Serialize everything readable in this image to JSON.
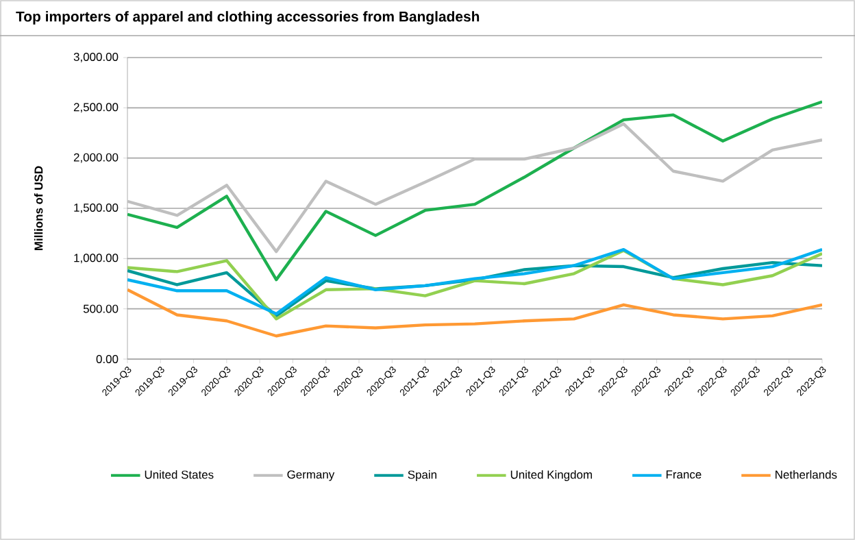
{
  "chart_data": {
    "type": "line",
    "title": "Top importers of apparel and clothing accessories from Bangladesh",
    "ylabel": "Millions of USD",
    "categories": [
      "2019-Q3",
      null,
      "2019-Q3",
      null,
      "2019-Q3",
      null,
      "2020-Q3",
      null,
      "2020-Q3",
      null,
      "2020-Q3",
      null,
      "2020-Q3",
      null,
      "2020-Q3",
      null,
      "2020-Q3",
      null,
      "2021-Q3",
      null,
      "2021-Q3",
      null,
      "2021-Q3",
      null,
      "2021-Q3",
      null,
      "2021-Q3",
      null,
      "2021-Q3",
      null,
      "2022-Q3",
      null,
      "2022-Q3",
      null,
      "2022-Q3",
      null,
      "2022-Q3",
      null,
      "2022-Q3",
      null,
      "2022-Q3",
      null,
      "2023-Q3"
    ],
    "ylim": [
      0,
      3000
    ],
    "yticks": [
      {
        "value": 0,
        "label": "0.00"
      },
      {
        "value": 500,
        "label": "500.00"
      },
      {
        "value": 1000,
        "label": "1,000.00"
      },
      {
        "value": 1500,
        "label": "1,500.00"
      },
      {
        "value": 2000,
        "label": "2,000.00"
      },
      {
        "value": 2500,
        "label": "2,500.00"
      },
      {
        "value": 3000,
        "label": "3,000.00"
      }
    ],
    "grid": "y",
    "legend": "bottom",
    "marker": "none",
    "line_style": "solid",
    "series": [
      {
        "name": "United States",
        "color": "#1db04f",
        "values": [
          1440,
          null,
          null,
          1310,
          null,
          null,
          1620,
          null,
          null,
          790,
          null,
          null,
          1470,
          null,
          null,
          1230,
          null,
          null,
          1480,
          null,
          null,
          1540,
          null,
          null,
          1810,
          null,
          null,
          2100,
          null,
          null,
          2380,
          null,
          null,
          2430,
          null,
          null,
          2170,
          null,
          null,
          2390,
          null,
          null,
          2560
        ]
      },
      {
        "name": "Germany",
        "color": "#bfbfbf",
        "values": [
          1570,
          null,
          null,
          1430,
          null,
          null,
          1730,
          null,
          null,
          1070,
          null,
          null,
          1770,
          null,
          null,
          1540,
          null,
          null,
          1760,
          null,
          null,
          1990,
          null,
          null,
          1990,
          null,
          null,
          2100,
          null,
          null,
          2340,
          null,
          null,
          1870,
          null,
          null,
          1770,
          null,
          null,
          2080,
          null,
          null,
          2180
        ]
      },
      {
        "name": "Spain",
        "color": "#009999",
        "values": [
          880,
          null,
          null,
          740,
          null,
          null,
          860,
          null,
          null,
          430,
          null,
          null,
          780,
          null,
          null,
          700,
          null,
          null,
          730,
          null,
          null,
          790,
          null,
          null,
          890,
          null,
          null,
          930,
          null,
          null,
          920,
          null,
          null,
          810,
          null,
          null,
          900,
          null,
          null,
          960,
          null,
          null,
          930
        ]
      },
      {
        "name": "United Kingdom",
        "color": "#92d050",
        "values": [
          910,
          null,
          null,
          870,
          null,
          null,
          980,
          null,
          null,
          400,
          null,
          null,
          690,
          null,
          null,
          700,
          null,
          null,
          630,
          null,
          null,
          780,
          null,
          null,
          750,
          null,
          null,
          850,
          null,
          null,
          1080,
          null,
          null,
          800,
          null,
          null,
          740,
          null,
          null,
          830,
          null,
          null,
          1050
        ]
      },
      {
        "name": "France",
        "color": "#00b0f0",
        "values": [
          790,
          null,
          null,
          680,
          null,
          null,
          680,
          null,
          null,
          450,
          null,
          null,
          810,
          null,
          null,
          690,
          null,
          null,
          730,
          null,
          null,
          800,
          null,
          null,
          850,
          null,
          null,
          930,
          null,
          null,
          1090,
          null,
          null,
          800,
          null,
          null,
          860,
          null,
          null,
          920,
          null,
          null,
          1090
        ]
      },
      {
        "name": "Netherlands",
        "color": "#ff9933",
        "values": [
          690,
          null,
          null,
          440,
          null,
          null,
          380,
          null,
          null,
          230,
          null,
          null,
          330,
          null,
          null,
          310,
          null,
          null,
          340,
          null,
          null,
          350,
          null,
          null,
          380,
          null,
          null,
          400,
          null,
          null,
          540,
          null,
          null,
          440,
          null,
          null,
          400,
          null,
          null,
          430,
          null,
          null,
          540
        ]
      }
    ]
  }
}
